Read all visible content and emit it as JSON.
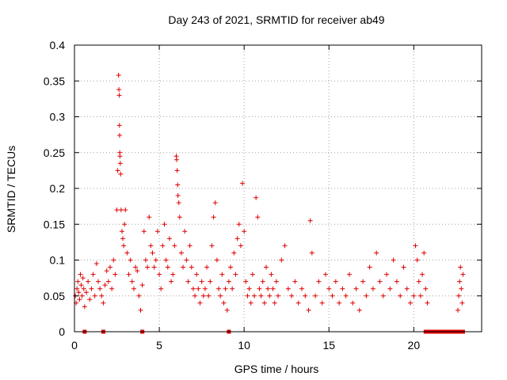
{
  "chart_data": {
    "type": "scatter",
    "title": "Day 243 of 2021, SRMTID for receiver ab49",
    "xlabel": "GPS time / hours",
    "ylabel": "SRMTID / TECUs",
    "xlim": [
      0,
      24
    ],
    "ylim": [
      0,
      0.4
    ],
    "xticks": [
      0,
      5,
      10,
      15,
      20
    ],
    "xtick_labels": [
      "0",
      "5",
      "10",
      "15",
      "20"
    ],
    "yticks": [
      0,
      0.05,
      0.1,
      0.15,
      0.2,
      0.25,
      0.3,
      0.35,
      0.4
    ],
    "ytick_labels": [
      "0",
      "0.05",
      "0.1",
      "0.15",
      "0.2",
      "0.25",
      "0.3",
      "0.35",
      "0.4"
    ],
    "grid": true,
    "marker": "+",
    "colors": {
      "points": "#e00000",
      "zero_markers": "#e00000",
      "grid": "#a0a0a0",
      "axis": "#000000"
    },
    "series": [
      {
        "name": "SRMTID",
        "points": [
          [
            0.05,
            0.05
          ],
          [
            0.1,
            0.04
          ],
          [
            0.15,
            0.06
          ],
          [
            0.2,
            0.07
          ],
          [
            0.25,
            0.055
          ],
          [
            0.3,
            0.045
          ],
          [
            0.35,
            0.08
          ],
          [
            0.4,
            0.065
          ],
          [
            0.45,
            0.05
          ],
          [
            0.5,
            0.075
          ],
          [
            0.55,
            0.06
          ],
          [
            0.6,
            0.035
          ],
          [
            0.7,
            0.055
          ],
          [
            0.8,
            0.07
          ],
          [
            0.9,
            0.045
          ],
          [
            1.0,
            0.06
          ],
          [
            1.1,
            0.08
          ],
          [
            1.2,
            0.05
          ],
          [
            1.3,
            0.095
          ],
          [
            1.4,
            0.07
          ],
          [
            1.5,
            0.06
          ],
          [
            1.6,
            0.05
          ],
          [
            1.7,
            0.04
          ],
          [
            1.8,
            0.065
          ],
          [
            1.9,
            0.085
          ],
          [
            2.0,
            0.07
          ],
          [
            2.1,
            0.09
          ],
          [
            2.2,
            0.06
          ],
          [
            2.3,
            0.1
          ],
          [
            2.4,
            0.08
          ],
          [
            2.5,
            0.17
          ],
          [
            2.55,
            0.225
          ],
          [
            2.6,
            0.358
          ],
          [
            2.62,
            0.338
          ],
          [
            2.64,
            0.33
          ],
          [
            2.65,
            0.288
          ],
          [
            2.66,
            0.274
          ],
          [
            2.67,
            0.25
          ],
          [
            2.68,
            0.245
          ],
          [
            2.7,
            0.235
          ],
          [
            2.72,
            0.22
          ],
          [
            2.75,
            0.17
          ],
          [
            2.8,
            0.14
          ],
          [
            2.85,
            0.13
          ],
          [
            2.9,
            0.12
          ],
          [
            2.95,
            0.15
          ],
          [
            3.0,
            0.17
          ],
          [
            3.1,
            0.11
          ],
          [
            3.2,
            0.08
          ],
          [
            3.3,
            0.1
          ],
          [
            3.4,
            0.07
          ],
          [
            3.5,
            0.06
          ],
          [
            3.6,
            0.09
          ],
          [
            3.7,
            0.085
          ],
          [
            3.8,
            0.05
          ],
          [
            3.9,
            0.03
          ],
          [
            4.0,
            0.065
          ],
          [
            4.1,
            0.14
          ],
          [
            4.2,
            0.1
          ],
          [
            4.3,
            0.09
          ],
          [
            4.4,
            0.16
          ],
          [
            4.5,
            0.12
          ],
          [
            4.6,
            0.11
          ],
          [
            4.7,
            0.09
          ],
          [
            4.8,
            0.1
          ],
          [
            4.9,
            0.14
          ],
          [
            5.0,
            0.08
          ],
          [
            5.1,
            0.06
          ],
          [
            5.2,
            0.12
          ],
          [
            5.3,
            0.15
          ],
          [
            5.4,
            0.1
          ],
          [
            5.5,
            0.09
          ],
          [
            5.6,
            0.13
          ],
          [
            5.7,
            0.07
          ],
          [
            5.8,
            0.08
          ],
          [
            5.9,
            0.12
          ],
          [
            6.0,
            0.245
          ],
          [
            6.02,
            0.24
          ],
          [
            6.05,
            0.225
          ],
          [
            6.08,
            0.205
          ],
          [
            6.1,
            0.19
          ],
          [
            6.15,
            0.18
          ],
          [
            6.2,
            0.16
          ],
          [
            6.3,
            0.11
          ],
          [
            6.4,
            0.09
          ],
          [
            6.5,
            0.14
          ],
          [
            6.6,
            0.1
          ],
          [
            6.7,
            0.07
          ],
          [
            6.8,
            0.12
          ],
          [
            6.9,
            0.09
          ],
          [
            7.0,
            0.06
          ],
          [
            7.1,
            0.05
          ],
          [
            7.2,
            0.08
          ],
          [
            7.3,
            0.06
          ],
          [
            7.4,
            0.04
          ],
          [
            7.5,
            0.07
          ],
          [
            7.6,
            0.05
          ],
          [
            7.7,
            0.06
          ],
          [
            7.8,
            0.09
          ],
          [
            7.9,
            0.05
          ],
          [
            8.0,
            0.07
          ],
          [
            8.1,
            0.12
          ],
          [
            8.2,
            0.16
          ],
          [
            8.3,
            0.18
          ],
          [
            8.4,
            0.1
          ],
          [
            8.5,
            0.06
          ],
          [
            8.6,
            0.05
          ],
          [
            8.7,
            0.08
          ],
          [
            8.8,
            0.04
          ],
          [
            8.9,
            0.06
          ],
          [
            9.0,
            0.03
          ],
          [
            9.1,
            0.07
          ],
          [
            9.2,
            0.09
          ],
          [
            9.3,
            0.06
          ],
          [
            9.4,
            0.11
          ],
          [
            9.5,
            0.08
          ],
          [
            9.6,
            0.13
          ],
          [
            9.7,
            0.15
          ],
          [
            9.8,
            0.12
          ],
          [
            9.9,
            0.207
          ],
          [
            10.0,
            0.14
          ],
          [
            10.1,
            0.07
          ],
          [
            10.2,
            0.05
          ],
          [
            10.3,
            0.06
          ],
          [
            10.4,
            0.04
          ],
          [
            10.5,
            0.08
          ],
          [
            10.6,
            0.05
          ],
          [
            10.7,
            0.187
          ],
          [
            10.8,
            0.16
          ],
          [
            10.9,
            0.06
          ],
          [
            11.0,
            0.05
          ],
          [
            11.1,
            0.07
          ],
          [
            11.2,
            0.04
          ],
          [
            11.3,
            0.09
          ],
          [
            11.4,
            0.06
          ],
          [
            11.5,
            0.05
          ],
          [
            11.6,
            0.08
          ],
          [
            11.7,
            0.06
          ],
          [
            11.8,
            0.04
          ],
          [
            11.9,
            0.07
          ],
          [
            12.0,
            0.05
          ],
          [
            12.2,
            0.1
          ],
          [
            12.4,
            0.12
          ],
          [
            12.6,
            0.06
          ],
          [
            12.8,
            0.05
          ],
          [
            13.0,
            0.07
          ],
          [
            13.2,
            0.04
          ],
          [
            13.4,
            0.06
          ],
          [
            13.6,
            0.05
          ],
          [
            13.8,
            0.03
          ],
          [
            13.9,
            0.155
          ],
          [
            14.0,
            0.11
          ],
          [
            14.2,
            0.05
          ],
          [
            14.4,
            0.07
          ],
          [
            14.6,
            0.04
          ],
          [
            14.8,
            0.08
          ],
          [
            15.0,
            0.06
          ],
          [
            15.2,
            0.05
          ],
          [
            15.4,
            0.07
          ],
          [
            15.6,
            0.04
          ],
          [
            15.8,
            0.06
          ],
          [
            16.0,
            0.05
          ],
          [
            16.2,
            0.08
          ],
          [
            16.4,
            0.04
          ],
          [
            16.6,
            0.06
          ],
          [
            16.8,
            0.03
          ],
          [
            17.0,
            0.07
          ],
          [
            17.2,
            0.05
          ],
          [
            17.4,
            0.09
          ],
          [
            17.6,
            0.06
          ],
          [
            17.8,
            0.11
          ],
          [
            18.0,
            0.07
          ],
          [
            18.2,
            0.05
          ],
          [
            18.4,
            0.08
          ],
          [
            18.6,
            0.06
          ],
          [
            18.8,
            0.1
          ],
          [
            19.0,
            0.07
          ],
          [
            19.2,
            0.05
          ],
          [
            19.4,
            0.09
          ],
          [
            19.6,
            0.06
          ],
          [
            19.8,
            0.04
          ],
          [
            20.0,
            0.05
          ],
          [
            20.1,
            0.12
          ],
          [
            20.2,
            0.1
          ],
          [
            20.3,
            0.07
          ],
          [
            20.4,
            0.05
          ],
          [
            20.5,
            0.08
          ],
          [
            20.6,
            0.11
          ],
          [
            20.7,
            0.06
          ],
          [
            20.8,
            0.04
          ],
          [
            22.6,
            0.03
          ],
          [
            22.65,
            0.05
          ],
          [
            22.7,
            0.07
          ],
          [
            22.75,
            0.09
          ],
          [
            22.8,
            0.06
          ],
          [
            22.85,
            0.04
          ],
          [
            22.9,
            0.08
          ]
        ]
      }
    ],
    "zero_markers_x": [
      0.6,
      1.7,
      4.0,
      9.1,
      20.7,
      20.9,
      21.1,
      21.3,
      21.5,
      21.7,
      21.9,
      22.1,
      22.3,
      22.5,
      22.7,
      22.9
    ]
  }
}
